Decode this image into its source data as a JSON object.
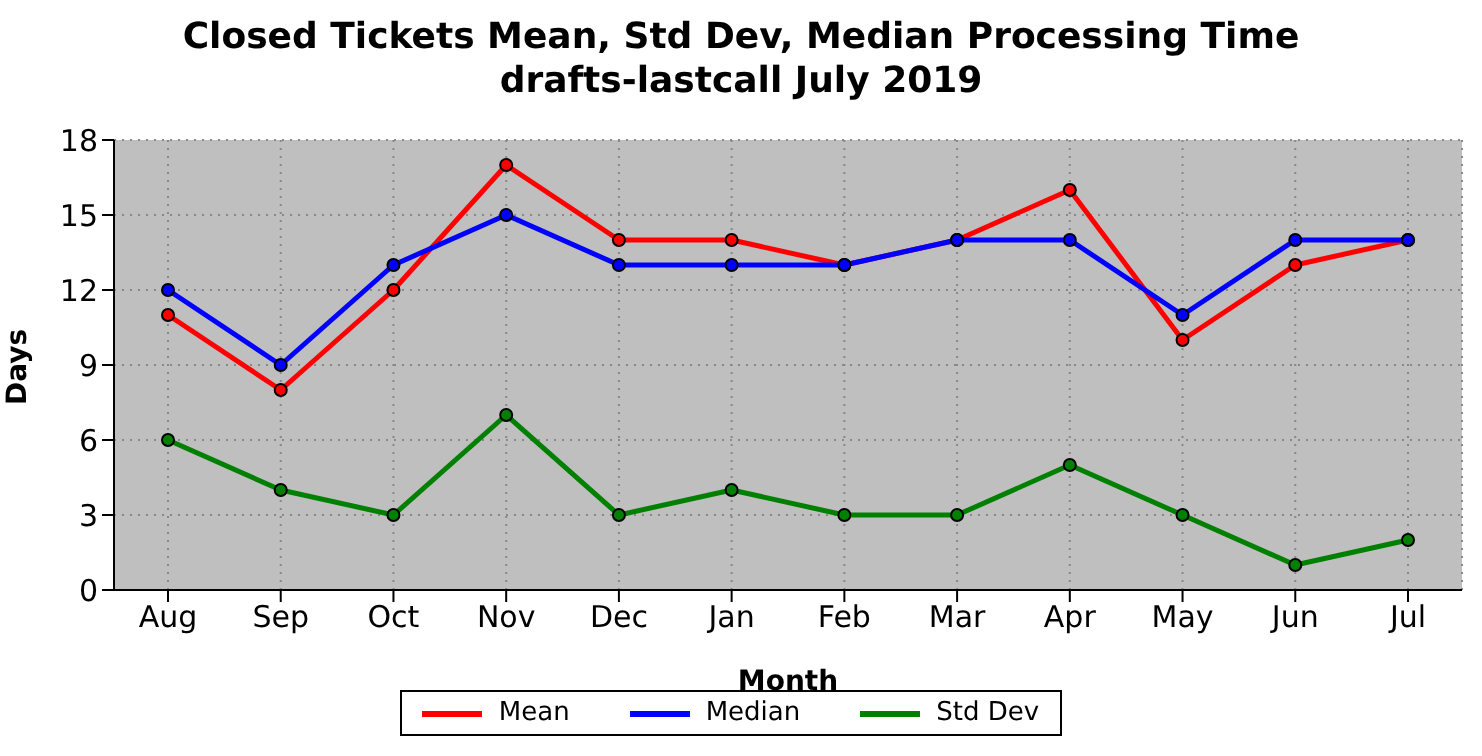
{
  "chart_data": {
    "type": "line",
    "title": "Closed Tickets Mean, Std Dev, Median Processing Time",
    "subtitle": "drafts-lastcall July 2019",
    "xlabel": "Month",
    "ylabel": "Days",
    "categories": [
      "Aug",
      "Sep",
      "Oct",
      "Nov",
      "Dec",
      "Jan",
      "Feb",
      "Mar",
      "Apr",
      "May",
      "Jun",
      "Jul"
    ],
    "series": [
      {
        "name": "Mean",
        "color": "#ff0000",
        "values": [
          11,
          8,
          12,
          17,
          14,
          14,
          13,
          14,
          16,
          10,
          13,
          14
        ]
      },
      {
        "name": "Median",
        "color": "#0000ff",
        "values": [
          12,
          9,
          13,
          15,
          13,
          13,
          13,
          14,
          14,
          11,
          14,
          14
        ]
      },
      {
        "name": "Std Dev",
        "color": "#008000",
        "values": [
          6,
          4,
          3,
          7,
          3,
          4,
          3,
          3,
          5,
          3,
          1,
          2
        ]
      }
    ],
    "ylim": [
      0,
      18
    ],
    "yticks": [
      0,
      3,
      6,
      9,
      12,
      15,
      18
    ],
    "grid": true,
    "legend": "bottom",
    "marker": "circle",
    "line_style": "solid"
  }
}
